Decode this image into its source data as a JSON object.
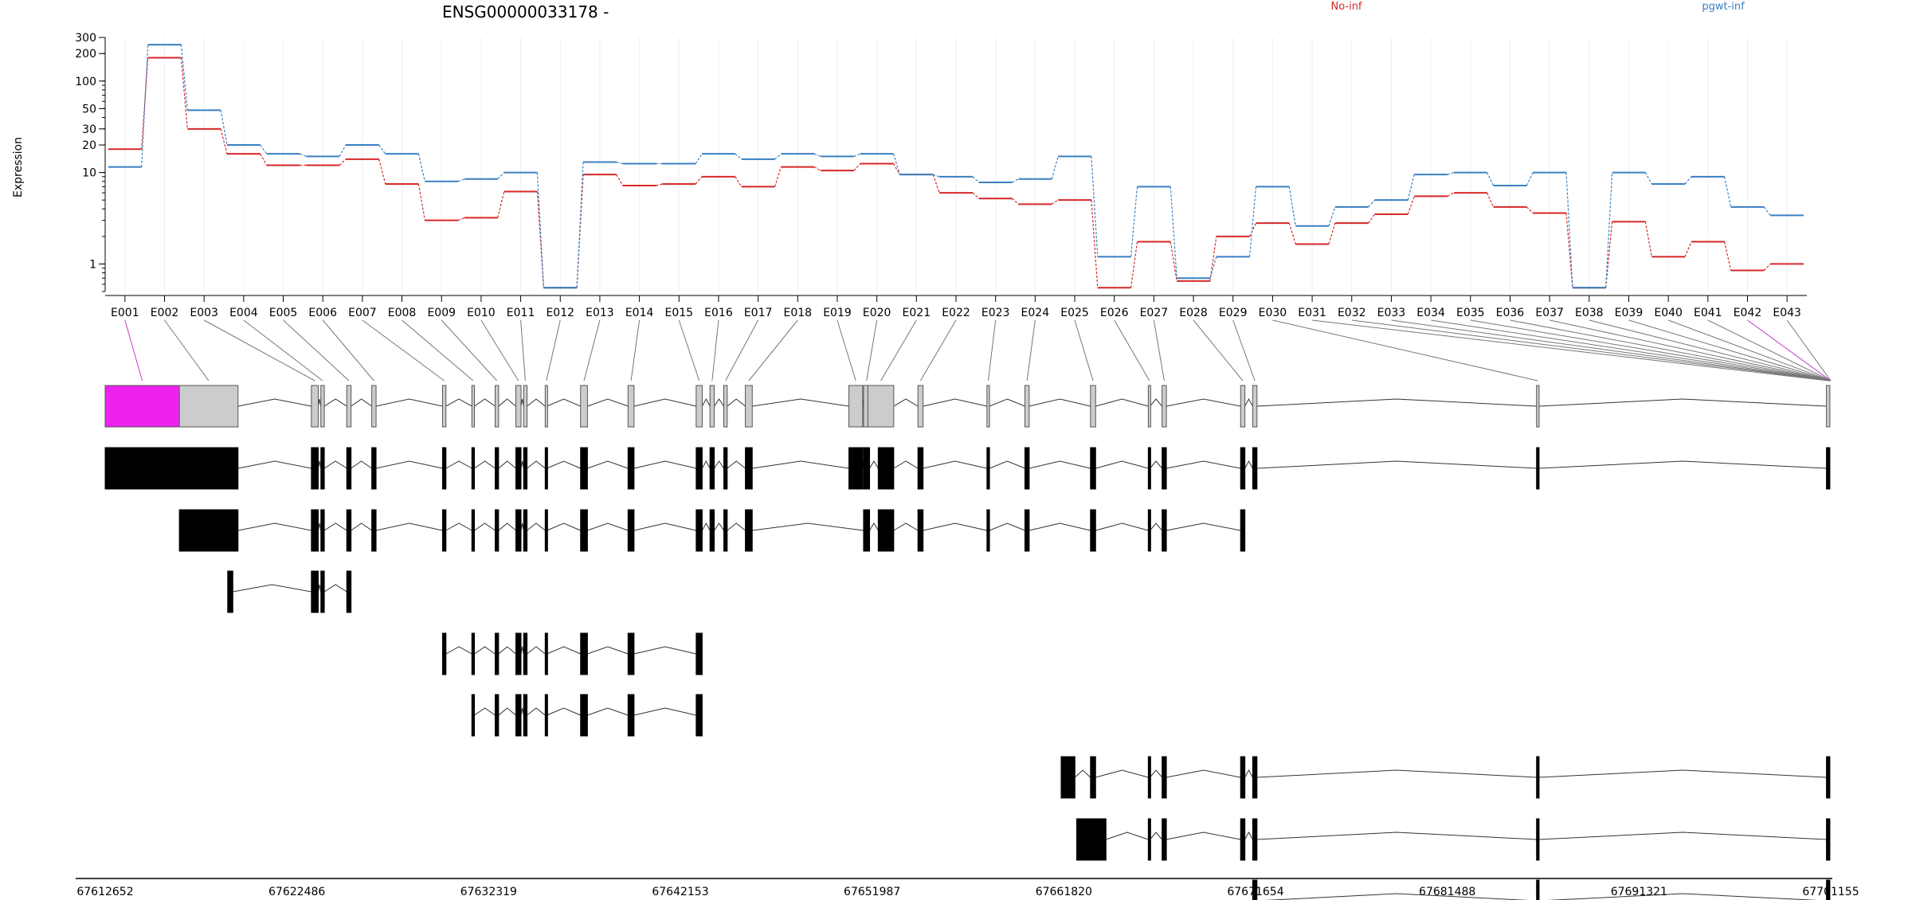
{
  "title": "ENSG00000033178 -",
  "ylabel": "Expression",
  "legend": [
    {
      "label": "No-inf",
      "color": "#d62728"
    },
    {
      "label": "pgwt-inf",
      "color": "#3a7fc1"
    }
  ],
  "highlight_color": "#ee22ee",
  "chart_data": {
    "type": "line",
    "title": "ENSG00000033178 -",
    "ylabel": "Expression",
    "ylog": true,
    "ylim": [
      0.5,
      300
    ],
    "yticks": [
      1,
      10,
      20,
      30,
      50,
      100,
      200,
      300
    ],
    "grid": true,
    "legend_position": "top-right",
    "categories": [
      "E001",
      "E002",
      "E003",
      "E004",
      "E005",
      "E006",
      "E007",
      "E008",
      "E009",
      "E010",
      "E011",
      "E012",
      "E013",
      "E014",
      "E015",
      "E016",
      "E017",
      "E018",
      "E019",
      "E020",
      "E021",
      "E022",
      "E023",
      "E024",
      "E025",
      "E026",
      "E027",
      "E028",
      "E029",
      "E030",
      "E031",
      "E032",
      "E033",
      "E034",
      "E035",
      "E036",
      "E037",
      "E038",
      "E039",
      "E040",
      "E041",
      "E042",
      "E043"
    ],
    "series": [
      {
        "name": "No-inf",
        "color": "#d62728",
        "values": [
          18,
          180,
          30,
          16,
          12,
          12,
          14,
          7.5,
          3,
          3.2,
          6.2,
          0.55,
          9.5,
          7.2,
          7.5,
          9,
          7,
          11.5,
          10.5,
          12.5,
          9.5,
          6,
          5.2,
          4.5,
          5,
          0.55,
          1.75,
          0.65,
          2,
          2.8,
          1.65,
          2.8,
          3.5,
          5.5,
          6,
          4.2,
          3.6,
          0.55,
          2.9,
          1.2,
          1.75,
          0.85,
          1
        ]
      },
      {
        "name": "pgwt-inf",
        "color": "#3a7fc1",
        "values": [
          11.5,
          250,
          48,
          20,
          16,
          15,
          20,
          16,
          8,
          8.5,
          10,
          0.55,
          13,
          12.5,
          12.5,
          16,
          14,
          16,
          15,
          16,
          9.5,
          9,
          7.8,
          8.5,
          15,
          1.2,
          7,
          0.7,
          1.2,
          7,
          2.6,
          4.2,
          5,
          9.5,
          10,
          7.2,
          10,
          0.55,
          10,
          7.5,
          9,
          4.2,
          3.4
        ]
      }
    ],
    "genomic_ticks": [
      "67612652",
      "67622486",
      "67632319",
      "67642153",
      "67651987",
      "67661820",
      "67671654",
      "67681488",
      "67691321",
      "67701155"
    ],
    "highlighted_exons": [
      "E001",
      "E042"
    ],
    "transcripts": [
      {
        "exons": [
          [
            0,
            86
          ],
          [
            86,
            154
          ],
          [
            239,
            247
          ],
          [
            250,
            254
          ],
          [
            280,
            285
          ],
          [
            309,
            314
          ],
          [
            391,
            395
          ],
          [
            425,
            428
          ],
          [
            452,
            456
          ],
          [
            476,
            482
          ],
          [
            485,
            489
          ],
          [
            510,
            512
          ],
          [
            551,
            559
          ],
          [
            606,
            613
          ],
          [
            685,
            692
          ],
          [
            701,
            706
          ],
          [
            717,
            721
          ],
          [
            742,
            750
          ],
          [
            862,
            878
          ],
          [
            879,
            886
          ],
          [
            884,
            914
          ],
          [
            942,
            948
          ],
          [
            1022,
            1025
          ],
          [
            1066,
            1071
          ],
          [
            1142,
            1148
          ],
          [
            1209,
            1211
          ],
          [
            1225,
            1230
          ],
          [
            1316,
            1321
          ],
          [
            1330,
            1335
          ],
          [
            1659,
            1662
          ],
          [
            1995,
            1999
          ]
        ]
      },
      {
        "exons": [
          [
            0,
            154
          ],
          [
            239,
            247
          ],
          [
            250,
            254
          ],
          [
            280,
            285
          ],
          [
            309,
            314
          ],
          [
            391,
            395
          ],
          [
            425,
            428
          ],
          [
            452,
            456
          ],
          [
            476,
            482
          ],
          [
            485,
            489
          ],
          [
            510,
            512
          ],
          [
            551,
            559
          ],
          [
            606,
            613
          ],
          [
            685,
            692
          ],
          [
            701,
            706
          ],
          [
            717,
            721
          ],
          [
            742,
            750
          ],
          [
            862,
            878
          ],
          [
            879,
            886
          ],
          [
            896,
            914
          ],
          [
            942,
            948
          ],
          [
            1022,
            1025
          ],
          [
            1066,
            1071
          ],
          [
            1142,
            1148
          ],
          [
            1209,
            1211
          ],
          [
            1225,
            1230
          ],
          [
            1316,
            1321
          ],
          [
            1330,
            1335
          ],
          [
            1659,
            1662
          ],
          [
            1995,
            1999
          ]
        ]
      },
      {
        "exons": [
          [
            86,
            154
          ],
          [
            239,
            247
          ],
          [
            250,
            254
          ],
          [
            280,
            285
          ],
          [
            309,
            314
          ],
          [
            391,
            395
          ],
          [
            425,
            428
          ],
          [
            452,
            456
          ],
          [
            476,
            482
          ],
          [
            485,
            489
          ],
          [
            510,
            512
          ],
          [
            551,
            559
          ],
          [
            606,
            613
          ],
          [
            685,
            692
          ],
          [
            701,
            706
          ],
          [
            717,
            721
          ],
          [
            742,
            750
          ],
          [
            879,
            886
          ],
          [
            896,
            914
          ],
          [
            942,
            948
          ],
          [
            1022,
            1025
          ],
          [
            1066,
            1071
          ],
          [
            1142,
            1148
          ],
          [
            1209,
            1211
          ],
          [
            1225,
            1230
          ],
          [
            1316,
            1321
          ]
        ]
      },
      {
        "exons": [
          [
            142,
            148
          ],
          [
            239,
            247
          ],
          [
            250,
            254
          ],
          [
            280,
            285
          ]
        ]
      },
      {
        "exons": [
          [
            391,
            395
          ],
          [
            425,
            428
          ],
          [
            452,
            456
          ],
          [
            476,
            482
          ],
          [
            485,
            489
          ],
          [
            510,
            512
          ],
          [
            551,
            559
          ],
          [
            606,
            613
          ],
          [
            685,
            692
          ]
        ]
      },
      {
        "exons": [
          [
            425,
            428
          ],
          [
            452,
            456
          ],
          [
            476,
            482
          ],
          [
            485,
            489
          ],
          [
            510,
            512
          ],
          [
            551,
            559
          ],
          [
            606,
            613
          ],
          [
            685,
            692
          ]
        ]
      },
      {
        "exons": [
          [
            1108,
            1124
          ],
          [
            1142,
            1148
          ],
          [
            1209,
            1211
          ],
          [
            1225,
            1230
          ],
          [
            1316,
            1321
          ],
          [
            1330,
            1335
          ],
          [
            1659,
            1662
          ],
          [
            1995,
            1999
          ]
        ]
      },
      {
        "exons": [
          [
            1126,
            1160
          ],
          [
            1209,
            1211
          ],
          [
            1225,
            1230
          ],
          [
            1316,
            1321
          ],
          [
            1330,
            1335
          ],
          [
            1659,
            1662
          ],
          [
            1995,
            1999
          ]
        ]
      },
      {
        "exons": [
          [
            1330,
            1335
          ],
          [
            1659,
            1662
          ],
          [
            1995,
            1999
          ]
        ]
      }
    ]
  }
}
